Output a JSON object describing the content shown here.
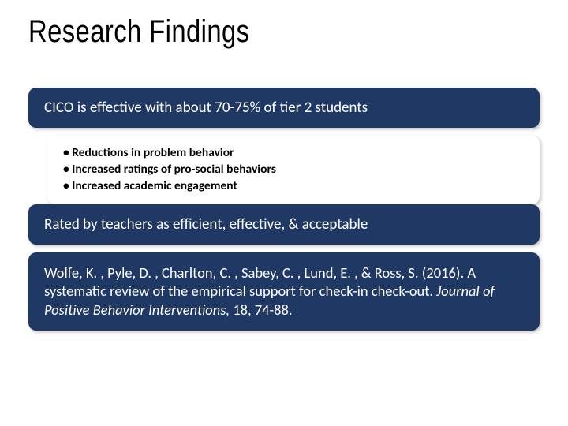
{
  "title": "Research Findings",
  "card1": {
    "text": "CICO is effective with about 70-75% of tier 2 students",
    "bg": "#1f3864",
    "fg": "#ffffff"
  },
  "bullets": {
    "items": [
      "Reductions in problem behavior",
      "Increased ratings of pro-social behaviors",
      "Increased academic engagement"
    ],
    "bg": "#ffffff",
    "fg": "#000000"
  },
  "card2": {
    "text": "Rated by teachers as efficient, effective, & acceptable",
    "bg": "#1f3864",
    "fg": "#ffffff"
  },
  "citation": {
    "authors": "Wolfe, K. , Pyle, D. , Charlton, C. , Sabey, C. , Lund, E. , & Ross, S. (2016). A systematic review of the empirical support for check-in check-out. ",
    "journal": "Journal of Positive Behavior Interventions, ",
    "vol": "18, 74-88.",
    "bg": "#1f3864",
    "fg": "#ffffff"
  },
  "style": {
    "title_fontsize": 40,
    "card_fontsize": 19,
    "bullet_fontsize": 15.5,
    "corner_radius": 10,
    "slide_bg": "#ffffff"
  }
}
